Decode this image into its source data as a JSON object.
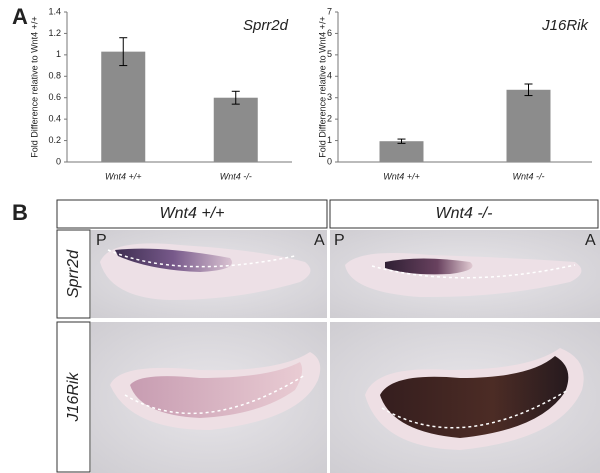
{
  "panel_a_label": "A",
  "panel_b_label": "B",
  "chart_data": [
    {
      "type": "bar",
      "title": "Sprr2d",
      "y_label": "Fold Difference relative to Wnt4 +/+",
      "categories": [
        "Wnt4 +/+",
        "Wnt4 -/-"
      ],
      "values": [
        1.03,
        0.6
      ],
      "errors": [
        0.13,
        0.06
      ],
      "color": "#8c8c8c",
      "ylim": [
        0,
        1.4
      ],
      "yticks": [
        0,
        0.2,
        0.4,
        0.6,
        0.8,
        1,
        1.2,
        1.4
      ]
    },
    {
      "type": "bar",
      "title": "J16Rik",
      "y_label": "Fold Difference relative to Wnt4 +/+",
      "categories": [
        "Wnt4 +/+",
        "Wnt4 -/-"
      ],
      "values": [
        0.97,
        3.37
      ],
      "errors": [
        0.1,
        0.27
      ],
      "color": "#8c8c8c",
      "ylim": [
        0,
        7
      ],
      "yticks": [
        0,
        1,
        2,
        3,
        4,
        5,
        6,
        7
      ]
    }
  ],
  "panel_b": {
    "columns": [
      "Wnt4 +/+",
      "Wnt4 -/-"
    ],
    "rows": [
      "Sprr2d",
      "J16Rik"
    ],
    "orientation": {
      "left": "P",
      "right": "A"
    }
  }
}
